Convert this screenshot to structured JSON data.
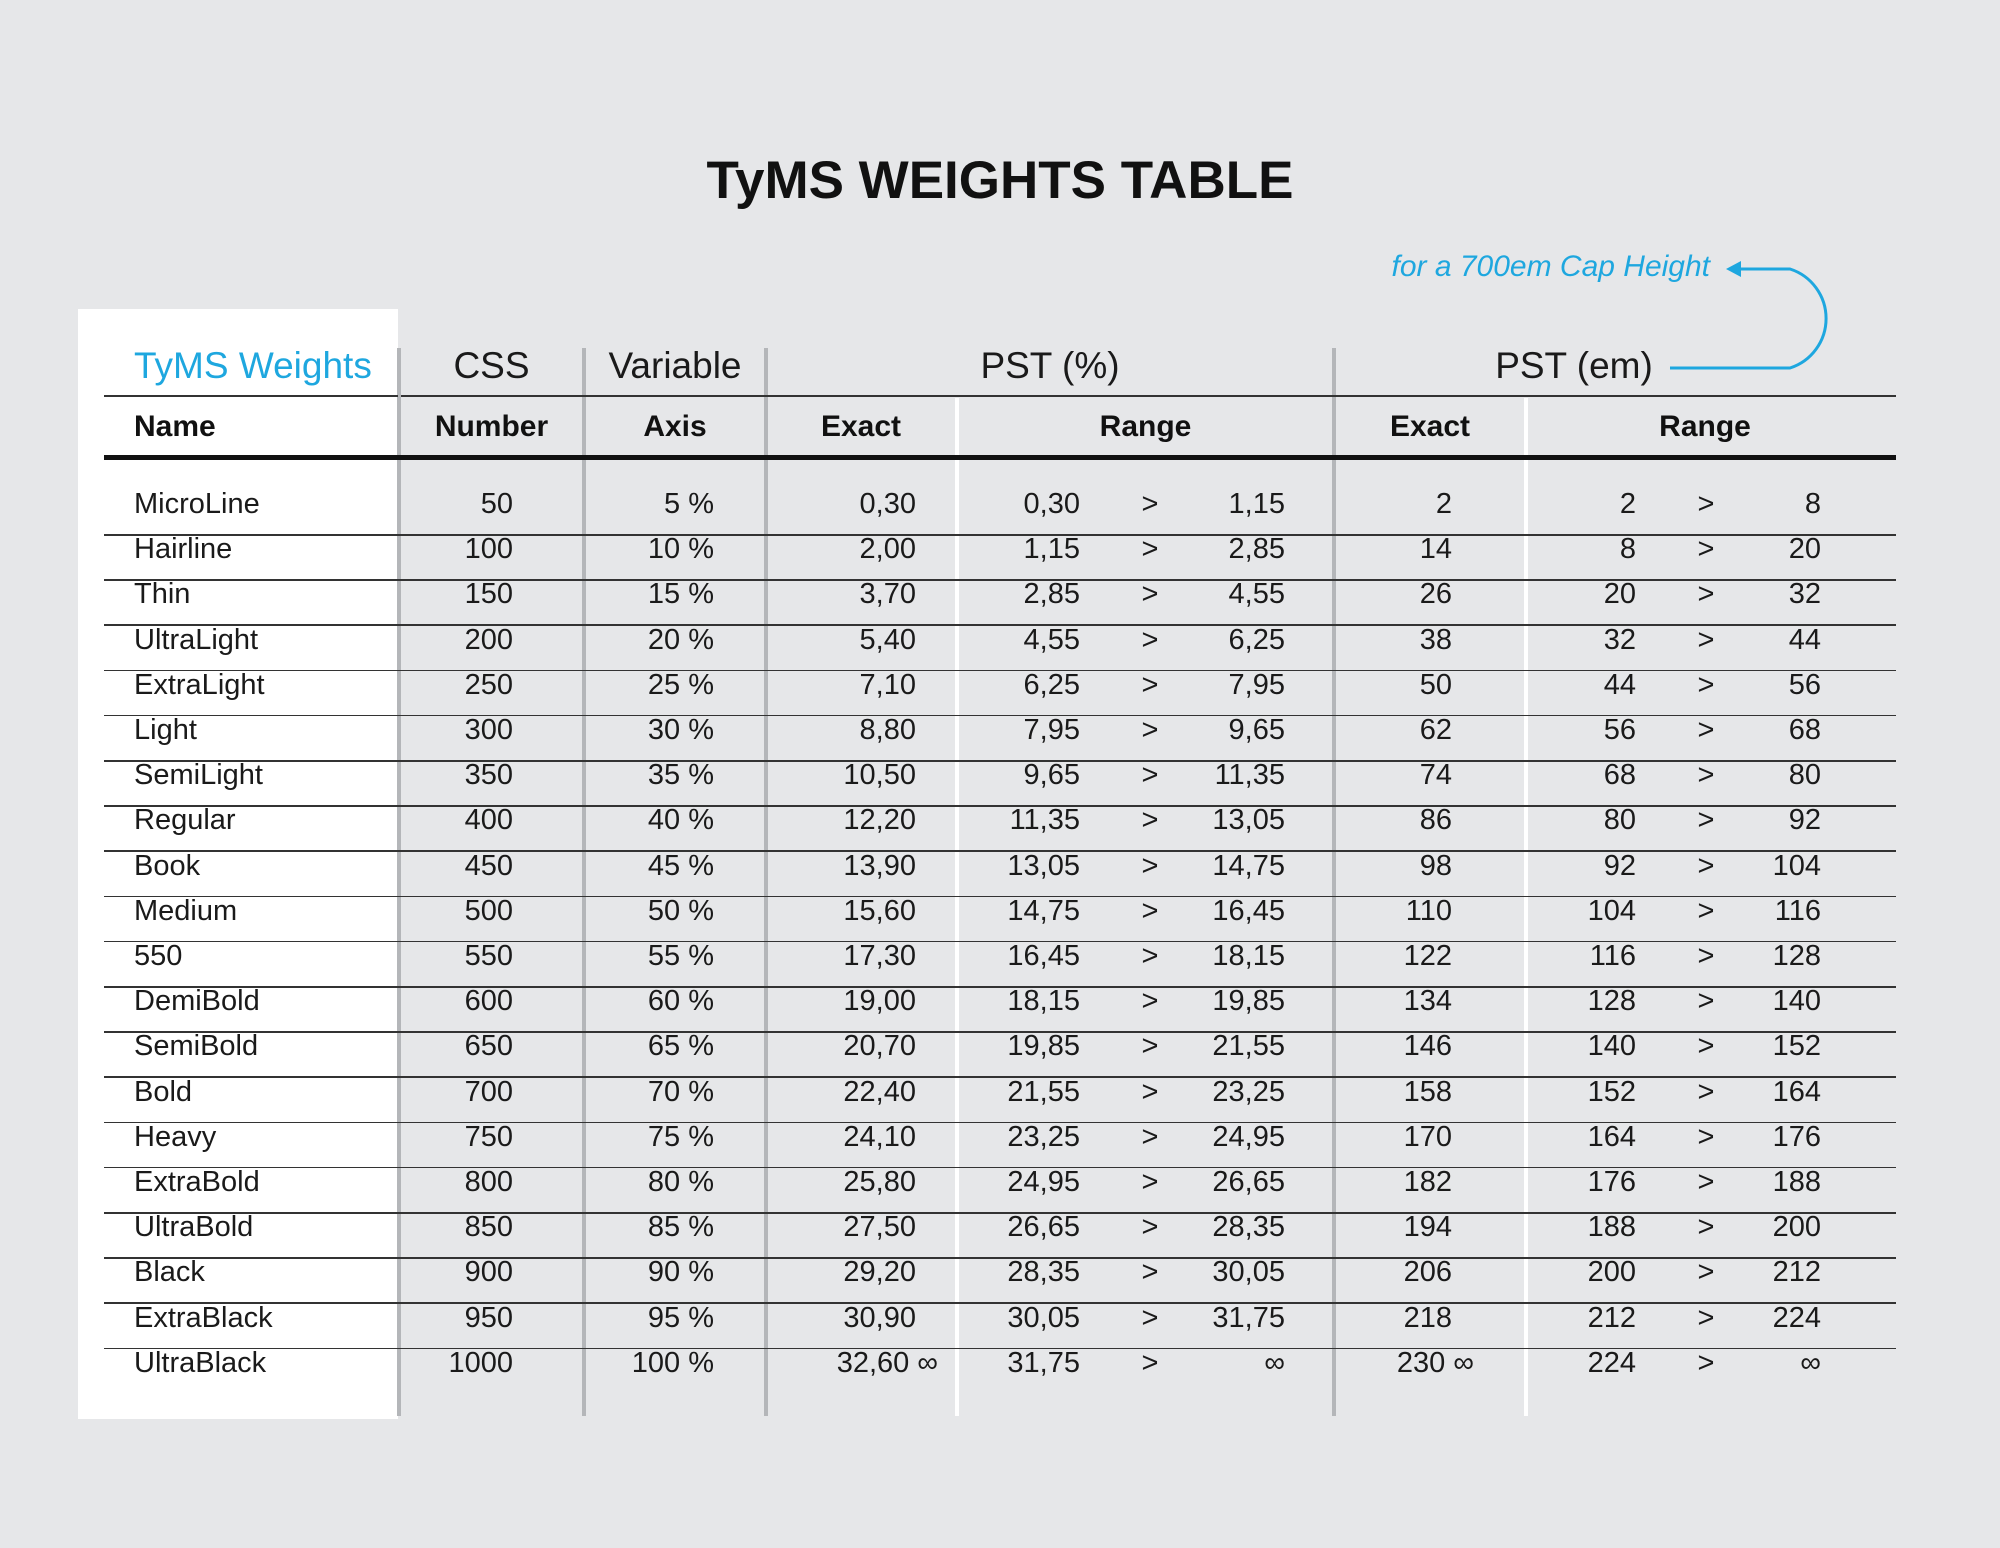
{
  "title": "TyMS WEIGHTS TABLE",
  "note": "for a 700em Cap Height",
  "accent_color": "#1ea7df",
  "header": {
    "groups": {
      "weights": "TyMS Weights",
      "css": "CSS",
      "variable": "Variable",
      "pst_pct": "PST (%)",
      "pst_em": "PST (em)"
    },
    "subs": {
      "name": "Name",
      "number": "Number",
      "axis": "Axis",
      "pct_exact": "Exact",
      "pct_range": "Range",
      "em_exact": "Exact",
      "em_range": "Range"
    }
  },
  "range_separator": ">",
  "rows": [
    {
      "name": "MicroLine",
      "css": "50",
      "axis": "5 %",
      "pct_exact": "0,30",
      "pct_from": "0,30",
      "pct_to": "1,15",
      "em_exact": "2",
      "em_from": "2",
      "em_to": "8"
    },
    {
      "name": "Hairline",
      "css": "100",
      "axis": "10 %",
      "pct_exact": "2,00",
      "pct_from": "1,15",
      "pct_to": "2,85",
      "em_exact": "14",
      "em_from": "8",
      "em_to": "20"
    },
    {
      "name": "Thin",
      "css": "150",
      "axis": "15 %",
      "pct_exact": "3,70",
      "pct_from": "2,85",
      "pct_to": "4,55",
      "em_exact": "26",
      "em_from": "20",
      "em_to": "32"
    },
    {
      "name": "UltraLight",
      "css": "200",
      "axis": "20 %",
      "pct_exact": "5,40",
      "pct_from": "4,55",
      "pct_to": "6,25",
      "em_exact": "38",
      "em_from": "32",
      "em_to": "44"
    },
    {
      "name": "ExtraLight",
      "css": "250",
      "axis": "25 %",
      "pct_exact": "7,10",
      "pct_from": "6,25",
      "pct_to": "7,95",
      "em_exact": "50",
      "em_from": "44",
      "em_to": "56"
    },
    {
      "name": "Light",
      "css": "300",
      "axis": "30 %",
      "pct_exact": "8,80",
      "pct_from": "7,95",
      "pct_to": "9,65",
      "em_exact": "62",
      "em_from": "56",
      "em_to": "68"
    },
    {
      "name": "SemiLight",
      "css": "350",
      "axis": "35 %",
      "pct_exact": "10,50",
      "pct_from": "9,65",
      "pct_to": "11,35",
      "em_exact": "74",
      "em_from": "68",
      "em_to": "80"
    },
    {
      "name": "Regular",
      "css": "400",
      "axis": "40 %",
      "pct_exact": "12,20",
      "pct_from": "11,35",
      "pct_to": "13,05",
      "em_exact": "86",
      "em_from": "80",
      "em_to": "92"
    },
    {
      "name": "Book",
      "css": "450",
      "axis": "45 %",
      "pct_exact": "13,90",
      "pct_from": "13,05",
      "pct_to": "14,75",
      "em_exact": "98",
      "em_from": "92",
      "em_to": "104"
    },
    {
      "name": "Medium",
      "css": "500",
      "axis": "50 %",
      "pct_exact": "15,60",
      "pct_from": "14,75",
      "pct_to": "16,45",
      "em_exact": "110",
      "em_from": "104",
      "em_to": "116"
    },
    {
      "name": "550",
      "css": "550",
      "axis": "55 %",
      "pct_exact": "17,30",
      "pct_from": "16,45",
      "pct_to": "18,15",
      "em_exact": "122",
      "em_from": "116",
      "em_to": "128"
    },
    {
      "name": "DemiBold",
      "css": "600",
      "axis": "60 %",
      "pct_exact": "19,00",
      "pct_from": "18,15",
      "pct_to": "19,85",
      "em_exact": "134",
      "em_from": "128",
      "em_to": "140"
    },
    {
      "name": "SemiBold",
      "css": "650",
      "axis": "65 %",
      "pct_exact": "20,70",
      "pct_from": "19,85",
      "pct_to": "21,55",
      "em_exact": "146",
      "em_from": "140",
      "em_to": "152"
    },
    {
      "name": "Bold",
      "css": "700",
      "axis": "70 %",
      "pct_exact": "22,40",
      "pct_from": "21,55",
      "pct_to": "23,25",
      "em_exact": "158",
      "em_from": "152",
      "em_to": "164"
    },
    {
      "name": "Heavy",
      "css": "750",
      "axis": "75 %",
      "pct_exact": "24,10",
      "pct_from": "23,25",
      "pct_to": "24,95",
      "em_exact": "170",
      "em_from": "164",
      "em_to": "176"
    },
    {
      "name": "ExtraBold",
      "css": "800",
      "axis": "80 %",
      "pct_exact": "25,80",
      "pct_from": "24,95",
      "pct_to": "26,65",
      "em_exact": "182",
      "em_from": "176",
      "em_to": "188"
    },
    {
      "name": "UltraBold",
      "css": "850",
      "axis": "85 %",
      "pct_exact": "27,50",
      "pct_from": "26,65",
      "pct_to": "28,35",
      "em_exact": "194",
      "em_from": "188",
      "em_to": "200"
    },
    {
      "name": "Black",
      "css": "900",
      "axis": "90 %",
      "pct_exact": "29,20",
      "pct_from": "28,35",
      "pct_to": "30,05",
      "em_exact": "206",
      "em_from": "200",
      "em_to": "212"
    },
    {
      "name": "ExtraBlack",
      "css": "950",
      "axis": "95 %",
      "pct_exact": "30,90",
      "pct_from": "30,05",
      "pct_to": "31,75",
      "em_exact": "218",
      "em_from": "212",
      "em_to": "224"
    },
    {
      "name": "UltraBlack",
      "css": "1000",
      "axis": "100 %",
      "pct_exact": "32,60 ∞",
      "pct_from": "31,75",
      "pct_to": "∞",
      "em_exact": "230 ∞",
      "em_from": "224",
      "em_to": "∞"
    }
  ]
}
